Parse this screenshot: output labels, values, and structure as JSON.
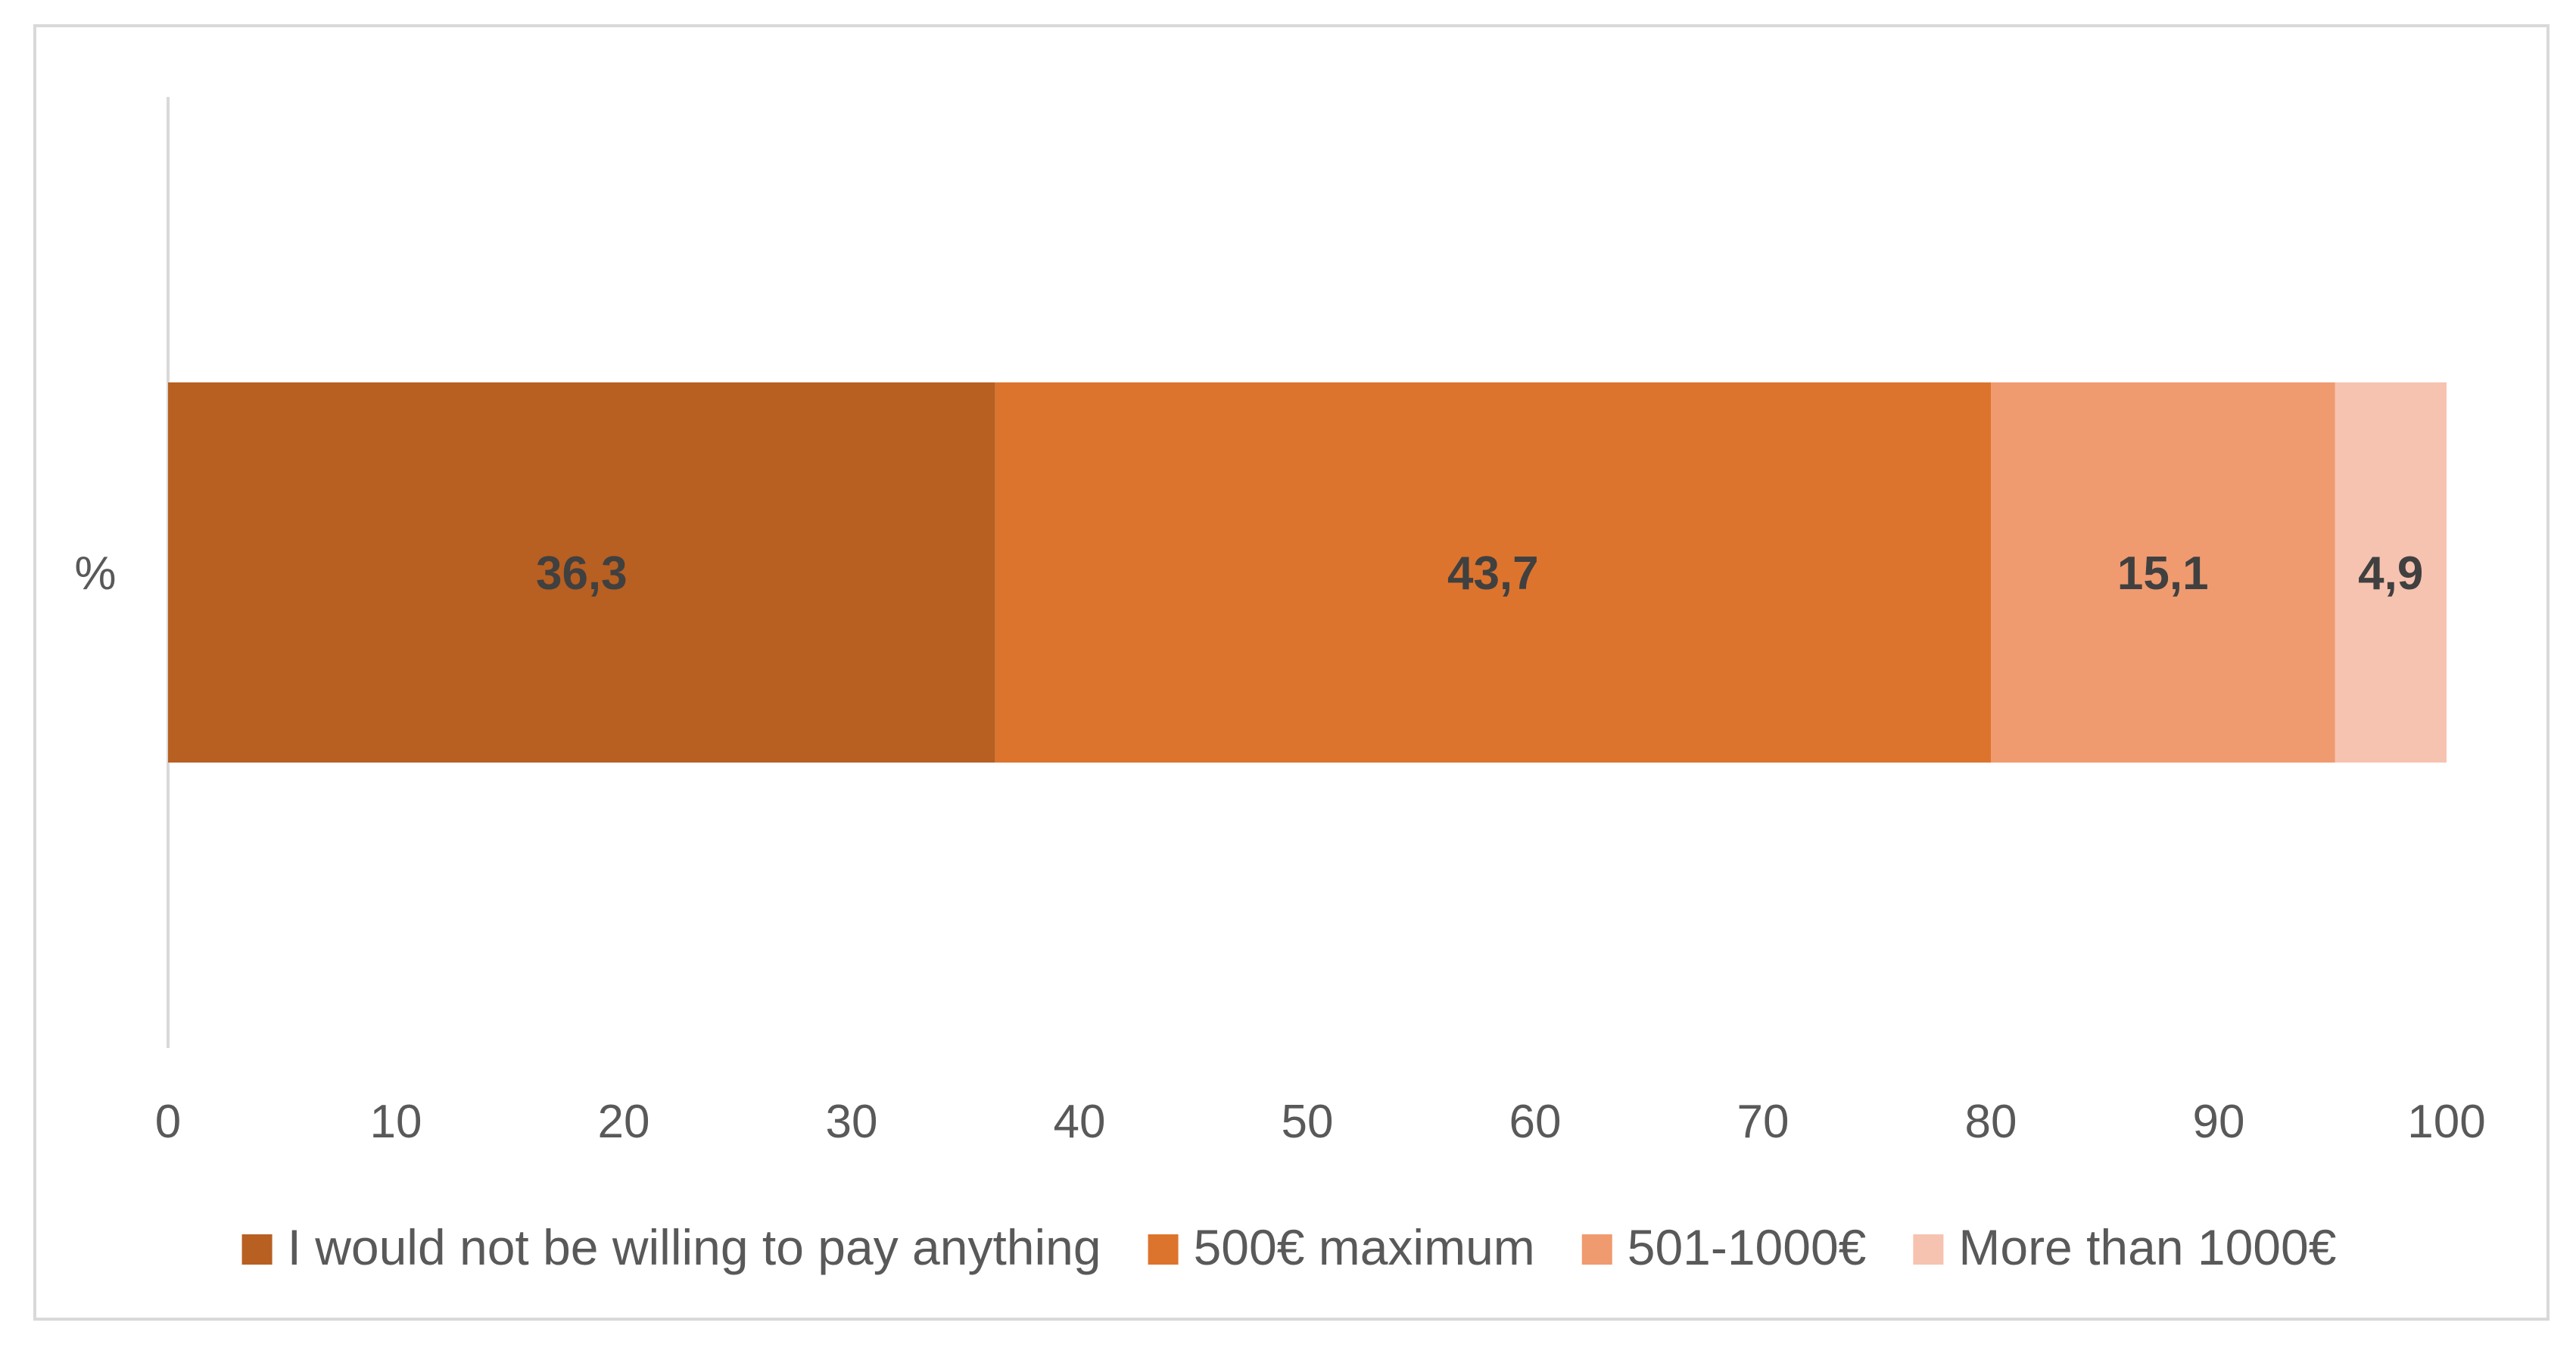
{
  "chart_data": {
    "type": "bar",
    "orientation": "horizontal",
    "stacked": true,
    "categories": [
      "%"
    ],
    "series": [
      {
        "name": "I would not be willing to pay anything",
        "values": [
          36.3
        ],
        "label": "36,3",
        "color": "#B85F22"
      },
      {
        "name": "500€ maximum",
        "values": [
          43.7
        ],
        "label": "43,7",
        "color": "#DD742D"
      },
      {
        "name": "501-1000€",
        "values": [
          15.1
        ],
        "label": "15,1",
        "color": "#F09A70"
      },
      {
        "name": "More than 1000€",
        "values": [
          4.9
        ],
        "label": "4,9",
        "color": "#F6C3B0"
      }
    ],
    "xlim": [
      0,
      100
    ],
    "xticks": [
      "0",
      "10",
      "20",
      "30",
      "40",
      "50",
      "60",
      "70",
      "80",
      "90",
      "100"
    ],
    "grid": false,
    "legend_position": "bottom"
  }
}
